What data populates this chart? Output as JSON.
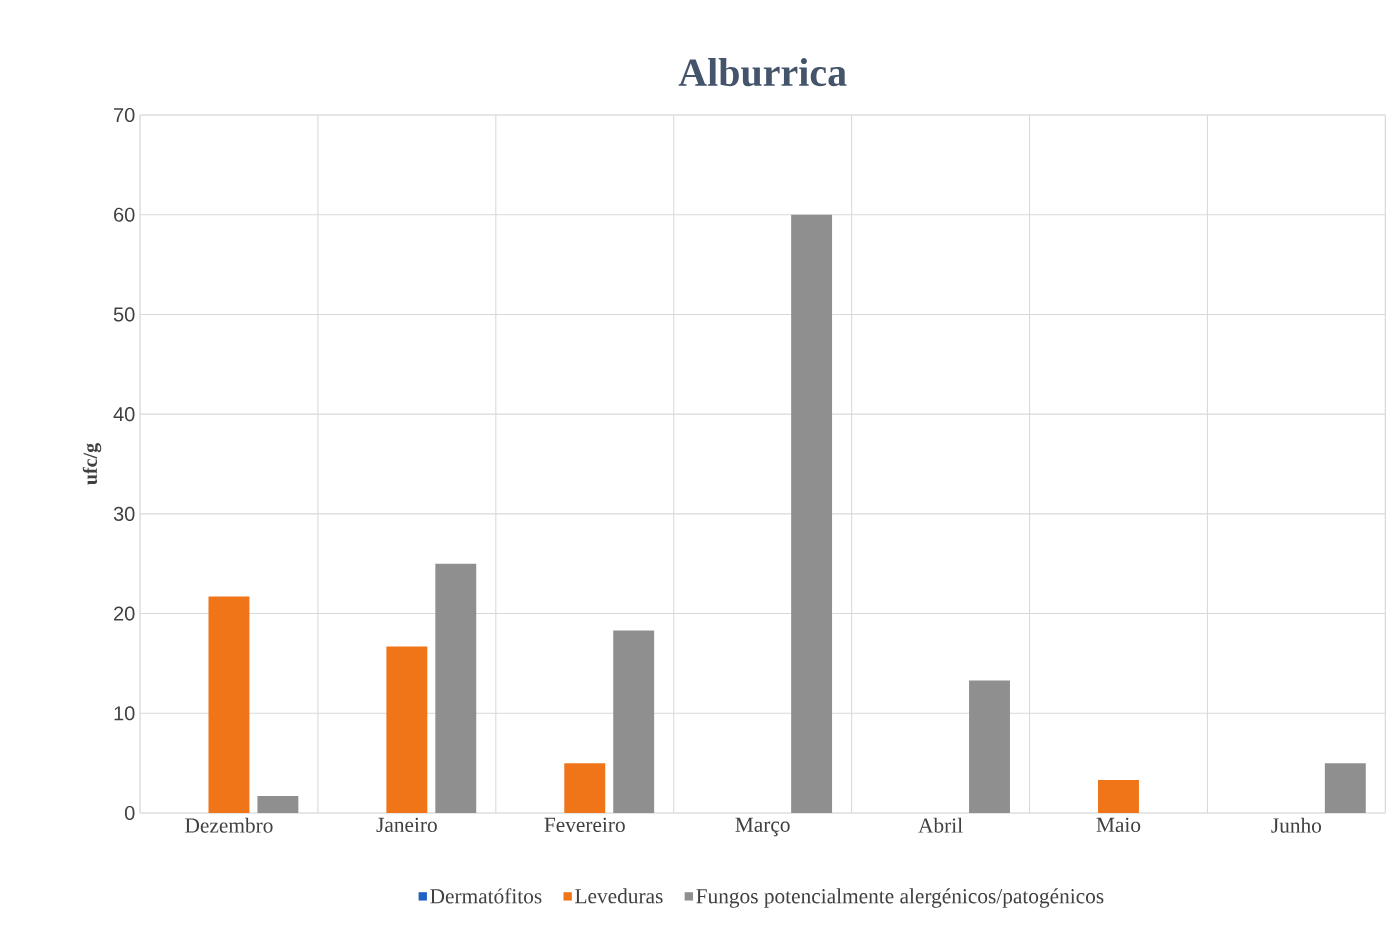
{
  "chart_data": {
    "type": "bar",
    "title": "Alburrica",
    "ylabel": "ufc/g",
    "categories": [
      "Dezembro",
      "Janeiro",
      "Fevereiro",
      "Março",
      "Abril",
      "Maio",
      "Junho"
    ],
    "series": [
      {
        "name": "Dermatófitos",
        "color": "#2062c4",
        "values": [
          0,
          0,
          0,
          0,
          0,
          0,
          0
        ]
      },
      {
        "name": "Leveduras",
        "color": "#f07418",
        "values": [
          21.7,
          16.7,
          5,
          0,
          0,
          3.3,
          0
        ]
      },
      {
        "name": "Fungos potencialmente alergénicos/patogénicos",
        "color": "#8f8f8f",
        "values": [
          1.7,
          25,
          18.3,
          60,
          13.3,
          0,
          5
        ]
      }
    ],
    "ylim": [
      0,
      70
    ],
    "yticks": [
      0,
      10,
      20,
      30,
      40,
      50,
      60,
      70
    ],
    "grid": true,
    "legend": "bottom"
  }
}
